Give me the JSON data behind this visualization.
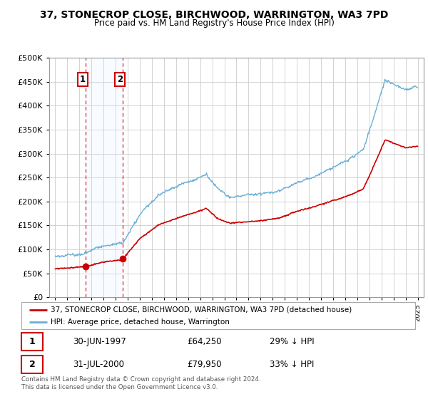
{
  "title": "37, STONECROP CLOSE, BIRCHWOOD, WARRINGTON, WA3 7PD",
  "subtitle": "Price paid vs. HM Land Registry's House Price Index (HPI)",
  "hpi_label": "HPI: Average price, detached house, Warrington",
  "property_label": "37, STONECROP CLOSE, BIRCHWOOD, WARRINGTON, WA3 7PD (detached house)",
  "hpi_color": "#6aaed6",
  "property_color": "#cc0000",
  "sale1_date": "30-JUN-1997",
  "sale1_price": 64250,
  "sale1_note": "29% ↓ HPI",
  "sale2_date": "31-JUL-2000",
  "sale2_price": 79950,
  "sale2_note": "33% ↓ HPI",
  "sale1_year": 1997.5,
  "sale2_year": 2000.58,
  "ylim_min": 0,
  "ylim_max": 500000,
  "xlim_min": 1994.5,
  "xlim_max": 2025.5,
  "background_color": "#ffffff",
  "plot_bg_color": "#ffffff",
  "grid_color": "#cccccc",
  "shade_color": "#ddeeff",
  "footnote": "Contains HM Land Registry data © Crown copyright and database right 2024.\nThis data is licensed under the Open Government Licence v3.0."
}
